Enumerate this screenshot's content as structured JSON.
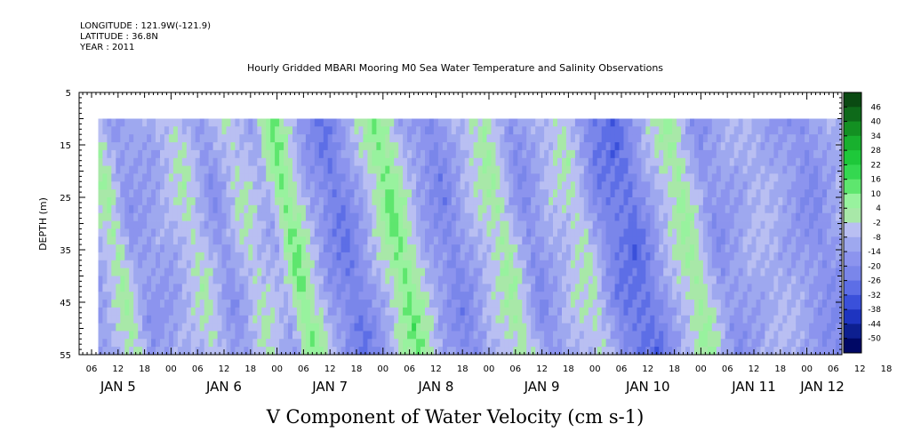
{
  "header": {
    "longitude": "LONGITUDE : 121.9W(-121.9)",
    "latitude": "LATITUDE : 36.8N",
    "year": "YEAR : 2011"
  },
  "chart_data": {
    "type": "heatmap",
    "title": "Hourly Gridded MBARI Mooring M0 Sea Water Temperature and Salinity Observations",
    "xlabel": "V Component of Water Velocity (cm s-1)",
    "ylabel": "DEPTH (m)",
    "y_range": [
      5,
      55
    ],
    "y_ticks": [
      5,
      15,
      25,
      35,
      45,
      55
    ],
    "data_depth_range": [
      10,
      55
    ],
    "x_hour_ticks": [
      "06",
      "12",
      "18",
      "00",
      "06",
      "12",
      "18",
      "00",
      "06",
      "12",
      "18",
      "00",
      "06",
      "12",
      "18",
      "00",
      "06",
      "12",
      "18",
      "00",
      "06",
      "12",
      "18",
      "00",
      "06",
      "12",
      "18",
      "00",
      "06",
      "12",
      "18",
      "00"
    ],
    "x_day_labels": [
      "JAN  5",
      "JAN  6",
      "JAN  7",
      "JAN  8",
      "JAN  9",
      "JAN 10",
      "JAN 11",
      "JAN 12"
    ],
    "colorbar_labels": [
      "46",
      "40",
      "34",
      "28",
      "22",
      "16",
      "10",
      "4",
      "-2",
      "-8",
      "-14",
      "-20",
      "-26",
      "-32",
      "-38",
      "-44",
      "-50"
    ],
    "colorbar_colors": [
      "#0a4a12",
      "#0e6a1a",
      "#139022",
      "#18b02e",
      "#1ec83a",
      "#34d850",
      "#5ee66e",
      "#98f29e",
      "#a8e8a8",
      "#b9bff2",
      "#9ea8ef",
      "#8c94ee",
      "#7a86ea",
      "#5d6ee6",
      "#3a50da",
      "#1e34c0",
      "#0d1f90",
      "#000865"
    ],
    "colorbar_range": [
      -50,
      52
    ],
    "velocity_profile_by_hour": [
      {
        "hour": 0,
        "v": -10
      },
      {
        "hour": 6,
        "v": 6
      },
      {
        "hour": 10,
        "v": -12
      },
      {
        "hour": 18,
        "v": -8
      },
      {
        "hour": 24,
        "v": 3
      },
      {
        "hour": 30,
        "v": -14
      },
      {
        "hour": 36,
        "v": 2
      },
      {
        "hour": 42,
        "v": -8
      },
      {
        "hour": 46,
        "v": 14
      },
      {
        "hour": 52,
        "v": -10
      },
      {
        "hour": 58,
        "v": -22
      },
      {
        "hour": 64,
        "v": -6
      },
      {
        "hour": 70,
        "v": 14
      },
      {
        "hour": 76,
        "v": -8
      },
      {
        "hour": 82,
        "v": -18
      },
      {
        "hour": 88,
        "v": -4
      },
      {
        "hour": 94,
        "v": 6
      },
      {
        "hour": 100,
        "v": -16
      },
      {
        "hour": 106,
        "v": -4
      },
      {
        "hour": 112,
        "v": 2
      },
      {
        "hour": 118,
        "v": -20
      },
      {
        "hour": 124,
        "v": -24
      },
      {
        "hour": 130,
        "v": -6
      },
      {
        "hour": 136,
        "v": 8
      },
      {
        "hour": 142,
        "v": -14
      },
      {
        "hour": 148,
        "v": -8
      },
      {
        "hour": 154,
        "v": -4
      },
      {
        "hour": 160,
        "v": -10
      },
      {
        "hour": 166,
        "v": -16
      },
      {
        "hour": 172,
        "v": -6
      },
      {
        "hour": 178,
        "v": -2
      },
      {
        "hour": 184,
        "v": -4
      },
      {
        "hour": 190,
        "v": 4
      },
      {
        "hour": 193,
        "v": 8
      }
    ],
    "time_range_hours": [
      0,
      193
    ]
  }
}
